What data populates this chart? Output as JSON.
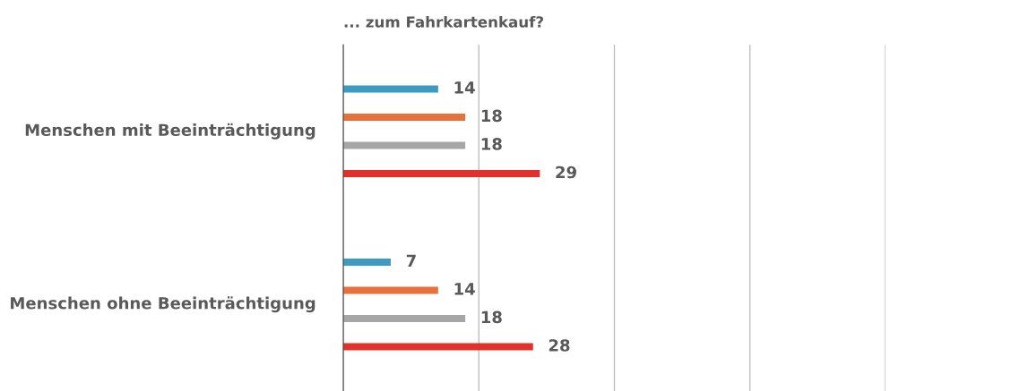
{
  "chart_data": {
    "type": "bar",
    "orientation": "horizontal",
    "title": "... zum Fahrkartenkauf?",
    "categories": [
      "Menschen mit Beeinträchtigung",
      "Menschen ohne Beeinträchtigung"
    ],
    "series": [
      {
        "color": "#3d9bc1",
        "values": [
          14,
          7
        ]
      },
      {
        "color": "#e8703a",
        "values": [
          18,
          14
        ]
      },
      {
        "color": "#a6a6a6",
        "values": [
          18,
          18
        ]
      },
      {
        "color": "#e0312b",
        "values": [
          29,
          28
        ]
      }
    ],
    "xlim": [
      0,
      80
    ],
    "xticks": [
      0,
      20,
      40,
      60,
      80
    ],
    "tick_labels": false,
    "grid": "x",
    "data_labels": true
  }
}
